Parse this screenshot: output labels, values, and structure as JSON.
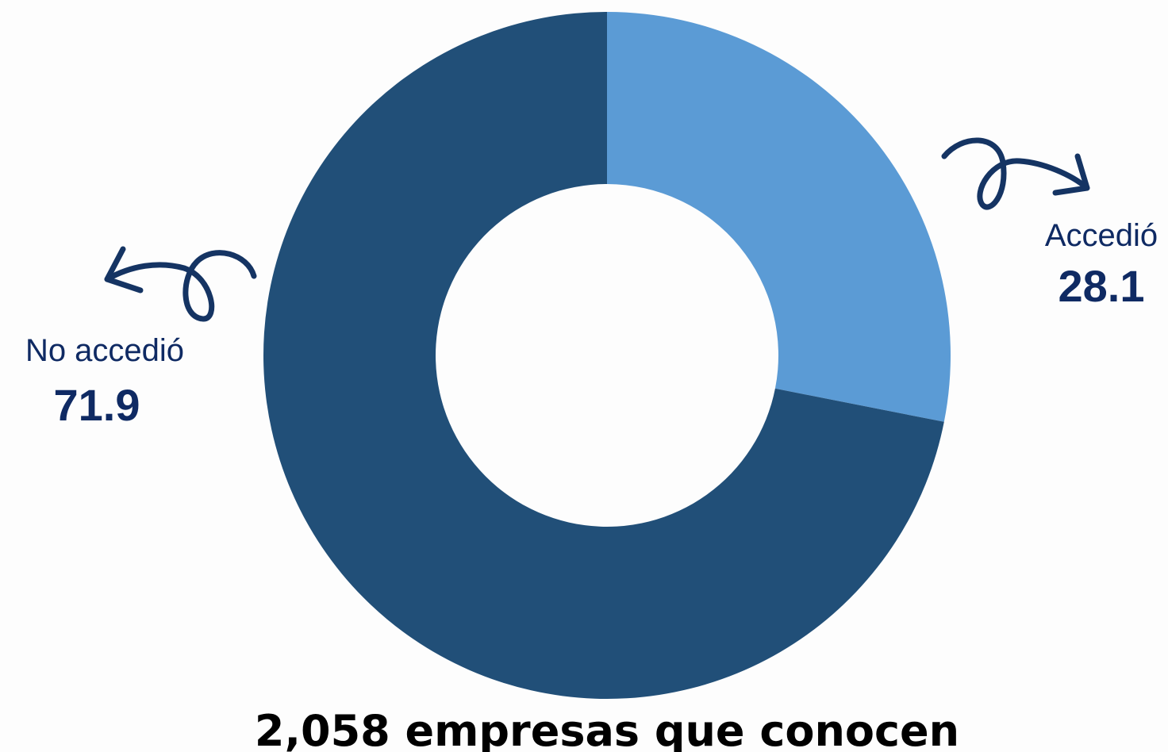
{
  "chart_data": {
    "type": "pie",
    "variant": "donut",
    "slices": [
      {
        "name": "Accedió",
        "value": 28.1,
        "value_label": "28.1",
        "color": "#5b9bd5"
      },
      {
        "name": "No accedió",
        "value": 71.9,
        "value_label": "71.9",
        "color": "#214f78"
      }
    ],
    "caption": "2,058 empresas que conocen",
    "start_angle": "12 o'clock",
    "direction": "clockwise",
    "legend": "none",
    "label_color": "#0f2a63",
    "arrow_color": "#153463"
  }
}
